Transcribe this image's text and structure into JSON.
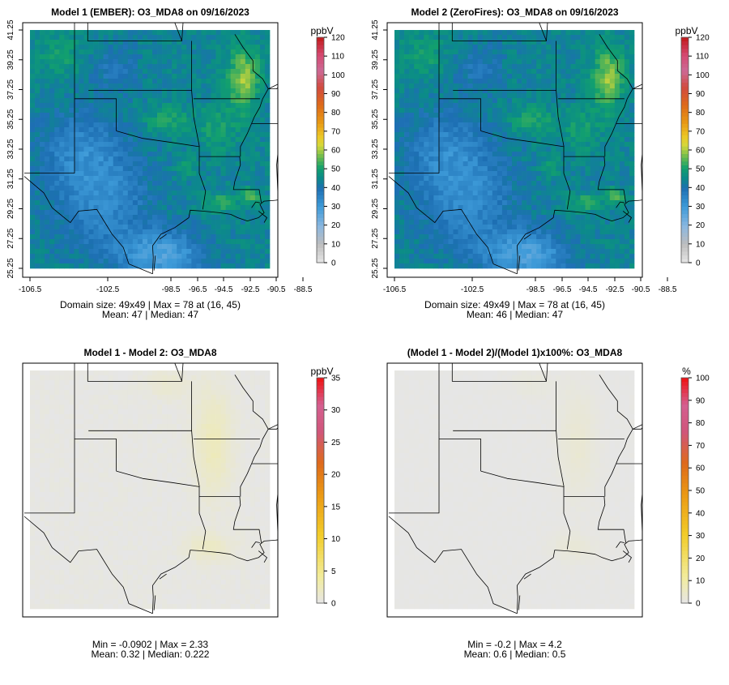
{
  "panels": [
    {
      "id": "p1",
      "title": "Model 1 (EMBER): O3_MDA8 on 09/16/2023",
      "kind": "abs",
      "unit": "ppbV",
      "colorbar_ticks": [
        "0",
        "10",
        "20",
        "30",
        "40",
        "50",
        "60",
        "70",
        "80",
        "90",
        "100",
        "110",
        "120"
      ],
      "stats_line1": "Domain size: 49x49 | Max = 78 at (16, 45)",
      "stats_line2": "Mean: 47 |  Median: 47",
      "show_axes": true
    },
    {
      "id": "p2",
      "title": "Model 2 (ZeroFires): O3_MDA8 on 09/16/2023",
      "kind": "abs",
      "unit": "ppbV",
      "colorbar_ticks": [
        "0",
        "10",
        "20",
        "30",
        "40",
        "50",
        "60",
        "70",
        "80",
        "90",
        "100",
        "110",
        "120"
      ],
      "stats_line1": "Domain size: 49x49 | Max = 78 at (16, 45)",
      "stats_line2": "Mean: 46 |  Median: 47",
      "show_axes": true
    },
    {
      "id": "p3",
      "title": "Model 1 - Model 2: O3_MDA8",
      "kind": "diff",
      "unit": "ppbV",
      "colorbar_ticks": [
        "0",
        "5",
        "10",
        "15",
        "20",
        "25",
        "30",
        "35"
      ],
      "stats_line1": "Min = -0.0902 | Max = 2.33",
      "stats_line2": "Mean: 0.32 |  Median: 0.222",
      "show_axes": false
    },
    {
      "id": "p4",
      "title": "(Model 1 - Model 2)/(Model 1)x100%: O3_MDA8",
      "kind": "pct",
      "unit": "%",
      "colorbar_ticks": [
        "0",
        "10",
        "20",
        "30",
        "40",
        "50",
        "60",
        "70",
        "80",
        "90",
        "100"
      ],
      "stats_line1": "Min = -0.2 | Max = 4.2",
      "stats_line2": "Mean: 0.6 |  Median: 0.5",
      "show_axes": false
    }
  ],
  "axes": {
    "x_ticks": [
      "-106.5",
      "-102.5",
      "-98.5",
      "-96.5",
      "-94.5",
      "-92.5",
      "-90.5",
      "-88.5"
    ],
    "y_ticks": [
      "25.25",
      "27.25",
      "29.25",
      "31.25",
      "33.25",
      "35.25",
      "37.25",
      "39.25",
      "41.25"
    ]
  },
  "chart_data": [
    {
      "type": "heatmap",
      "title": "Model 1 (EMBER): O3_MDA8 on 09/16/2023",
      "variable": "O3_MDA8",
      "units": "ppbV",
      "grid": [
        49,
        49
      ],
      "x_range": [
        -106.5,
        -88.5
      ],
      "y_range": [
        25.25,
        41.25
      ],
      "color_range": [
        0,
        120
      ],
      "max": 78,
      "max_at": [
        16,
        45
      ],
      "mean": 47,
      "median": 47
    },
    {
      "type": "heatmap",
      "title": "Model 2 (ZeroFires): O3_MDA8 on 09/16/2023",
      "variable": "O3_MDA8",
      "units": "ppbV",
      "grid": [
        49,
        49
      ],
      "x_range": [
        -106.5,
        -88.5
      ],
      "y_range": [
        25.25,
        41.25
      ],
      "color_range": [
        0,
        120
      ],
      "max": 78,
      "max_at": [
        16,
        45
      ],
      "mean": 46,
      "median": 47
    },
    {
      "type": "heatmap",
      "title": "Model 1 - Model 2: O3_MDA8",
      "units": "ppbV",
      "color_range": [
        0,
        35
      ],
      "min": -0.0902,
      "max": 2.33,
      "mean": 0.32,
      "median": 0.222
    },
    {
      "type": "heatmap",
      "title": "(Model 1 - Model 2)/(Model 1)x100%: O3_MDA8",
      "units": "%",
      "color_range": [
        0,
        100
      ],
      "min": -0.2,
      "max": 4.2,
      "mean": 0.6,
      "median": 0.5
    }
  ]
}
